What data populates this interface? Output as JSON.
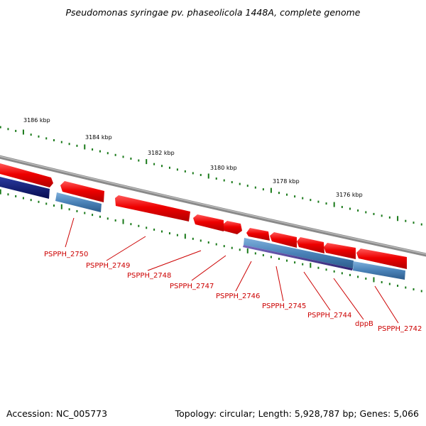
{
  "title": "Pseudomonas syringae pv. phaseolicola 1448A, complete genome",
  "footer": {
    "accession": "Accession: NC_005773",
    "summary": "Topology: circular; Length: 5,928,787 bp; Genes: 5,066"
  },
  "scale_labels": [
    "3186 kbp",
    "3184 kbp",
    "3182 kbp",
    "3180 kbp",
    "3178 kbp",
    "3176 kbp"
  ],
  "gene_labels": [
    "PSPPH_2750",
    "PSPPH_2749",
    "PSPPH_2748",
    "PSPPH_2747",
    "PSPPH_2746",
    "PSPPH_2745",
    "PSPPH_2744",
    "dppB",
    "PSPPH_2742"
  ],
  "colors": {
    "backbone": "#8a8a8a",
    "gene_forward": "#ee0000",
    "cds_blue": "#4a82b8",
    "cds_navy": "#0a1478",
    "cds_purple": "#4a3a90",
    "tick": "#1a7a1a",
    "label": "#cc0000"
  },
  "icons": [
    "gene-arrow-icon"
  ]
}
